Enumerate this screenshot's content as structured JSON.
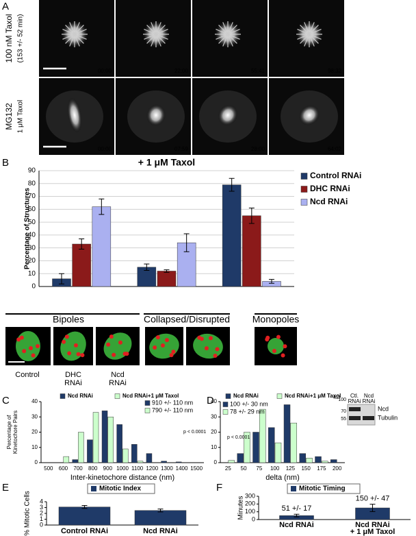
{
  "microscopy": {
    "panel": "A",
    "rows": [
      {
        "label": [
          "100 nM Taxol",
          "(153 +/- 52 min)"
        ],
        "times": [
          "00:00",
          "22:00",
          "55:41",
          "98:32"
        ]
      },
      {
        "label": [
          "MG132",
          "1 μM Taxol"
        ],
        "times": [
          "00:00",
          "07:59",
          "28:00",
          "64:02"
        ]
      }
    ]
  },
  "cell_images": {
    "labels": [
      [
        "Control"
      ],
      [
        "DHC",
        "RNAi"
      ],
      [
        "Ncd",
        "RNAi"
      ]
    ]
  },
  "western_blot": {
    "unit": "kD",
    "markers": [
      100,
      70,
      55
    ],
    "lanes": [
      [
        "Ctl.",
        "RNAi"
      ],
      [
        "Ncd",
        "RNAi"
      ]
    ],
    "bands": [
      "Ncd",
      "Tubulin"
    ]
  },
  "chart_data": [
    {
      "panel": "B",
      "type": "bar",
      "title": "+ 1 μM Taxol",
      "ylabel": "Percentage of Structures",
      "categories": [
        "Bipoles",
        "Collapsed/Disrupted",
        "Monopoles"
      ],
      "series": [
        {
          "name": "Control RNAi",
          "color": "#1f3a68",
          "values": [
            6,
            15,
            79
          ],
          "errors": [
            4,
            2.5,
            5
          ]
        },
        {
          "name": "DHC RNAi",
          "color": "#8b1a1a",
          "values": [
            33,
            12,
            55
          ],
          "errors": [
            4,
            1,
            6
          ]
        },
        {
          "name": "Ncd RNAi",
          "color": "#aab0f0",
          "values": [
            62,
            34,
            4
          ],
          "errors": [
            6,
            7,
            1.5
          ]
        }
      ],
      "ylim": [
        0,
        90
      ],
      "yticks": [
        0,
        10,
        20,
        30,
        40,
        50,
        60,
        70,
        80,
        90
      ],
      "grid": true,
      "legend": "right"
    },
    {
      "panel": "C",
      "type": "bar",
      "xlabel": "Inter-kinetochore distance (nm)",
      "ylabel": [
        "Percentage of",
        "Kinetochore Pairs"
      ],
      "categories": [
        500,
        600,
        700,
        800,
        900,
        1000,
        1100,
        1200,
        1300,
        1400,
        1500
      ],
      "series": [
        {
          "name": "Ncd RNAi",
          "color": "#1f3a68",
          "values": [
            0,
            0,
            2,
            15,
            34,
            25,
            12,
            6,
            1,
            0.5,
            0
          ]
        },
        {
          "name": "Ncd RNAi+1 μM Taxol",
          "color": "#ccffcc",
          "values": [
            0,
            4,
            20,
            33,
            30,
            9,
            1,
            0,
            0,
            0,
            0
          ]
        }
      ],
      "annotations": [
        "910 +/- 110 nm",
        "790 +/- 110 nm",
        "p < 0.0001"
      ],
      "ylim": [
        0,
        40
      ],
      "yticks": [
        0,
        10,
        20,
        30,
        40
      ],
      "grid": false,
      "legend": "top"
    },
    {
      "panel": "D",
      "type": "bar",
      "xlabel": "delta (nm)",
      "categories": [
        25,
        50,
        75,
        100,
        125,
        150,
        175,
        200
      ],
      "series": [
        {
          "name": "Ncd RNAi",
          "color": "#1f3a68",
          "values": [
            0,
            6,
            20,
            23,
            38,
            6,
            4,
            2
          ]
        },
        {
          "name": "Ncd RNAi+1 μM Taxol",
          "color": "#ccffcc",
          "values": [
            1.5,
            20,
            35,
            13,
            26,
            3,
            1,
            0
          ]
        }
      ],
      "annotations": [
        "100 +/- 30 nm",
        "78 +/- 29 nm",
        "p < 0.0001"
      ],
      "ylim": [
        0,
        40
      ],
      "yticks": [
        0,
        10,
        20,
        30,
        40
      ],
      "grid": false,
      "legend": "top"
    },
    {
      "panel": "E",
      "type": "bar",
      "title": "Mitotic Index",
      "ylabel": "% Mitotic Cells",
      "categories": [
        "Control RNAi",
        "Ncd RNAi"
      ],
      "values": [
        3.1,
        2.5
      ],
      "errors": [
        0.25,
        0.25
      ],
      "color": "#1f3a68",
      "ylim": [
        0,
        4
      ],
      "yticks": [
        0,
        1,
        2,
        3,
        4
      ],
      "grid": false
    },
    {
      "panel": "F",
      "type": "bar",
      "title": "Mitotic Timing",
      "ylabel": "Minutes",
      "categories": [
        [
          "Ncd RNAi"
        ],
        [
          "Ncd RNAi",
          "+ 1 μM Taxol"
        ]
      ],
      "values": [
        51,
        150
      ],
      "errors": [
        17,
        47
      ],
      "value_labels": [
        "51 +/- 17",
        "150 +/- 47"
      ],
      "color": "#1f3a68",
      "ylim": [
        0,
        300
      ],
      "yticks": [
        0,
        100,
        200,
        300
      ],
      "grid": false
    }
  ]
}
